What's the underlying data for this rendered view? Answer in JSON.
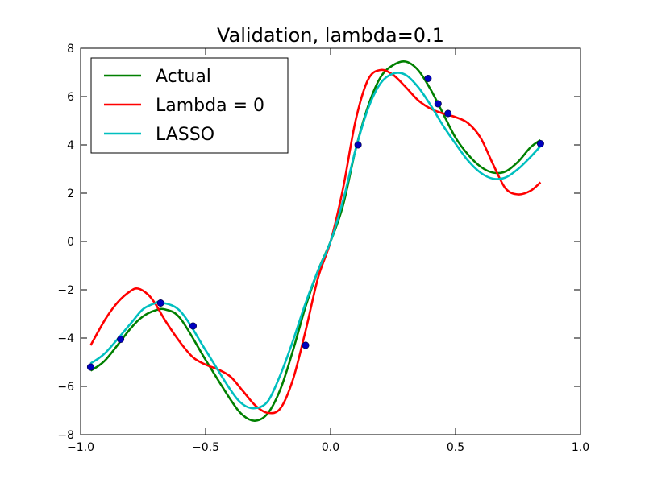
{
  "chart_data": {
    "type": "line",
    "title": "Validation, lambda=0.1",
    "xlabel": "",
    "ylabel": "",
    "xlim": [
      -1.0,
      1.0
    ],
    "ylim": [
      -8,
      8
    ],
    "x_ticks": [
      -1.0,
      -0.5,
      0.0,
      0.5,
      1.0
    ],
    "x_tick_labels": [
      "−1.0",
      "−0.5",
      "0.0",
      "0.5",
      "1.0"
    ],
    "y_ticks": [
      -8,
      -6,
      -4,
      -2,
      0,
      2,
      4,
      6,
      8
    ],
    "y_tick_labels": [
      "−8",
      "−6",
      "−4",
      "−2",
      "0",
      "2",
      "4",
      "6",
      "8"
    ],
    "grid": false,
    "legend_position": "top-left",
    "series": [
      {
        "name": "Actual",
        "color": "#008000",
        "x": [
          -0.96,
          -0.9,
          -0.8,
          -0.75,
          -0.7,
          -0.66,
          -0.6,
          -0.5,
          -0.4,
          -0.35,
          -0.3,
          -0.25,
          -0.2,
          -0.15,
          -0.1,
          -0.05,
          0.0,
          0.05,
          0.1,
          0.15,
          0.2,
          0.25,
          0.3,
          0.35,
          0.4,
          0.45,
          0.5,
          0.55,
          0.6,
          0.65,
          0.7,
          0.75,
          0.8,
          0.84
        ],
        "y": [
          -5.35,
          -4.9,
          -3.6,
          -3.1,
          -2.85,
          -2.82,
          -3.2,
          -4.9,
          -6.55,
          -7.2,
          -7.42,
          -7.1,
          -6.1,
          -4.5,
          -2.7,
          -1.2,
          0.0,
          1.5,
          3.8,
          5.6,
          6.8,
          7.3,
          7.45,
          7.1,
          6.3,
          5.3,
          4.3,
          3.6,
          3.1,
          2.85,
          2.9,
          3.3,
          3.9,
          4.2
        ]
      },
      {
        "name": "Lambda = 0",
        "color": "#ff0000",
        "x": [
          -0.96,
          -0.9,
          -0.85,
          -0.8,
          -0.77,
          -0.73,
          -0.7,
          -0.66,
          -0.6,
          -0.55,
          -0.5,
          -0.45,
          -0.4,
          -0.35,
          -0.3,
          -0.25,
          -0.2,
          -0.15,
          -0.1,
          -0.05,
          0.0,
          0.05,
          0.1,
          0.15,
          0.2,
          0.25,
          0.3,
          0.35,
          0.4,
          0.45,
          0.5,
          0.55,
          0.6,
          0.65,
          0.7,
          0.75,
          0.8,
          0.84
        ],
        "y": [
          -4.3,
          -3.2,
          -2.5,
          -2.05,
          -1.95,
          -2.2,
          -2.6,
          -3.3,
          -4.2,
          -4.8,
          -5.1,
          -5.3,
          -5.6,
          -6.2,
          -6.8,
          -7.1,
          -6.9,
          -5.7,
          -3.7,
          -1.5,
          0.0,
          2.2,
          5.0,
          6.7,
          7.1,
          6.9,
          6.4,
          5.85,
          5.5,
          5.3,
          5.15,
          4.9,
          4.3,
          3.2,
          2.2,
          1.95,
          2.1,
          2.45
        ]
      },
      {
        "name": "LASSO",
        "color": "#00bfbf",
        "x": [
          -0.96,
          -0.9,
          -0.8,
          -0.75,
          -0.7,
          -0.68,
          -0.6,
          -0.5,
          -0.4,
          -0.35,
          -0.3,
          -0.25,
          -0.2,
          -0.15,
          -0.1,
          -0.05,
          0.0,
          0.05,
          0.1,
          0.15,
          0.2,
          0.25,
          0.3,
          0.35,
          0.4,
          0.45,
          0.5,
          0.55,
          0.6,
          0.65,
          0.7,
          0.75,
          0.8,
          0.84
        ],
        "y": [
          -5.05,
          -4.6,
          -3.4,
          -2.8,
          -2.55,
          -2.52,
          -2.9,
          -4.5,
          -6.15,
          -6.75,
          -6.9,
          -6.6,
          -5.5,
          -4.1,
          -2.55,
          -1.2,
          0.0,
          1.7,
          3.8,
          5.5,
          6.55,
          6.95,
          6.9,
          6.4,
          5.65,
          4.8,
          4.05,
          3.35,
          2.85,
          2.6,
          2.65,
          3.0,
          3.5,
          3.95
        ]
      }
    ],
    "points": {
      "color": "#0000bf",
      "x": [
        -0.96,
        -0.84,
        -0.68,
        -0.55,
        -0.1,
        0.11,
        0.39,
        0.43,
        0.47,
        0.84
      ],
      "y": [
        -5.2,
        -4.05,
        -2.55,
        -3.5,
        -4.3,
        4.0,
        6.75,
        5.7,
        5.3,
        4.05
      ]
    }
  }
}
